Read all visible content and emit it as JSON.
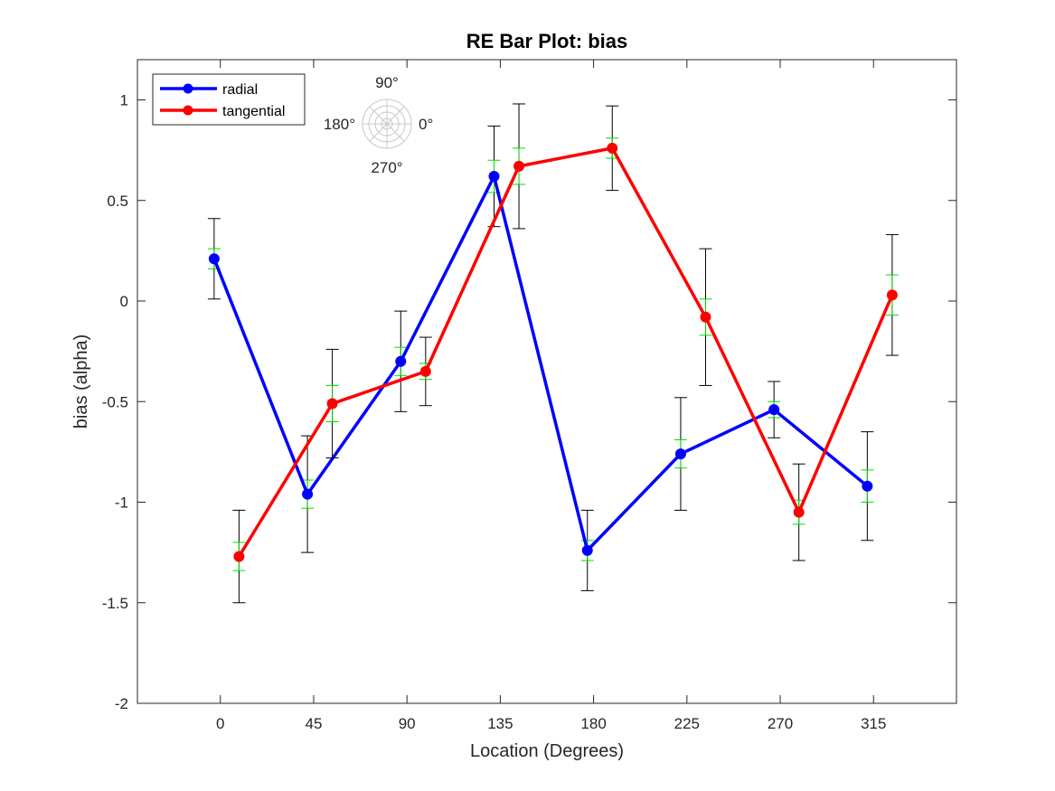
{
  "chart_data": {
    "type": "line",
    "title": "RE Bar Plot: bias",
    "xlabel": "Location (Degrees)",
    "ylabel": "bias (alpha)",
    "xlim": [
      -40,
      355
    ],
    "ylim": [
      -2,
      1.2
    ],
    "x_ticks": [
      0,
      45,
      90,
      135,
      180,
      225,
      270,
      315
    ],
    "x_tick_labels": [
      "0",
      "45",
      "90",
      "135",
      "180",
      "225",
      "270",
      "315"
    ],
    "y_ticks": [
      1,
      0.5,
      0,
      -0.5,
      -1,
      -1.5,
      -2
    ],
    "y_tick_labels": [
      "1",
      "0.5",
      "0",
      "-0.5",
      "-1",
      "-1.5",
      "-2"
    ],
    "grid": false,
    "legend_position": "top-left",
    "series": [
      {
        "name": "radial",
        "color": "#0000ff",
        "x": [
          -3,
          42,
          87,
          132,
          177,
          222,
          267,
          312
        ],
        "y": [
          0.21,
          -0.96,
          -0.3,
          0.62,
          -1.24,
          -0.76,
          -0.54,
          -0.92
        ],
        "err_outer": [
          0.2,
          0.29,
          0.25,
          0.25,
          0.2,
          0.28,
          0.14,
          0.27
        ],
        "err_inner": [
          0.05,
          0.07,
          0.07,
          0.08,
          0.05,
          0.07,
          0.04,
          0.08
        ]
      },
      {
        "name": "tangential",
        "color": "#ff0000",
        "x": [
          9,
          54,
          99,
          144,
          189,
          234,
          279,
          324
        ],
        "y": [
          -1.27,
          -0.51,
          -0.35,
          0.67,
          0.76,
          -0.08,
          -1.05,
          0.03
        ],
        "err_outer": [
          0.23,
          0.27,
          0.17,
          0.31,
          0.21,
          0.34,
          0.24,
          0.3
        ],
        "err_inner": [
          0.07,
          0.09,
          0.04,
          0.09,
          0.05,
          0.09,
          0.06,
          0.1
        ]
      }
    ],
    "compass": {
      "labels": {
        "top": "90°",
        "left": "180°",
        "right": "0°",
        "bottom": "270°"
      }
    }
  }
}
